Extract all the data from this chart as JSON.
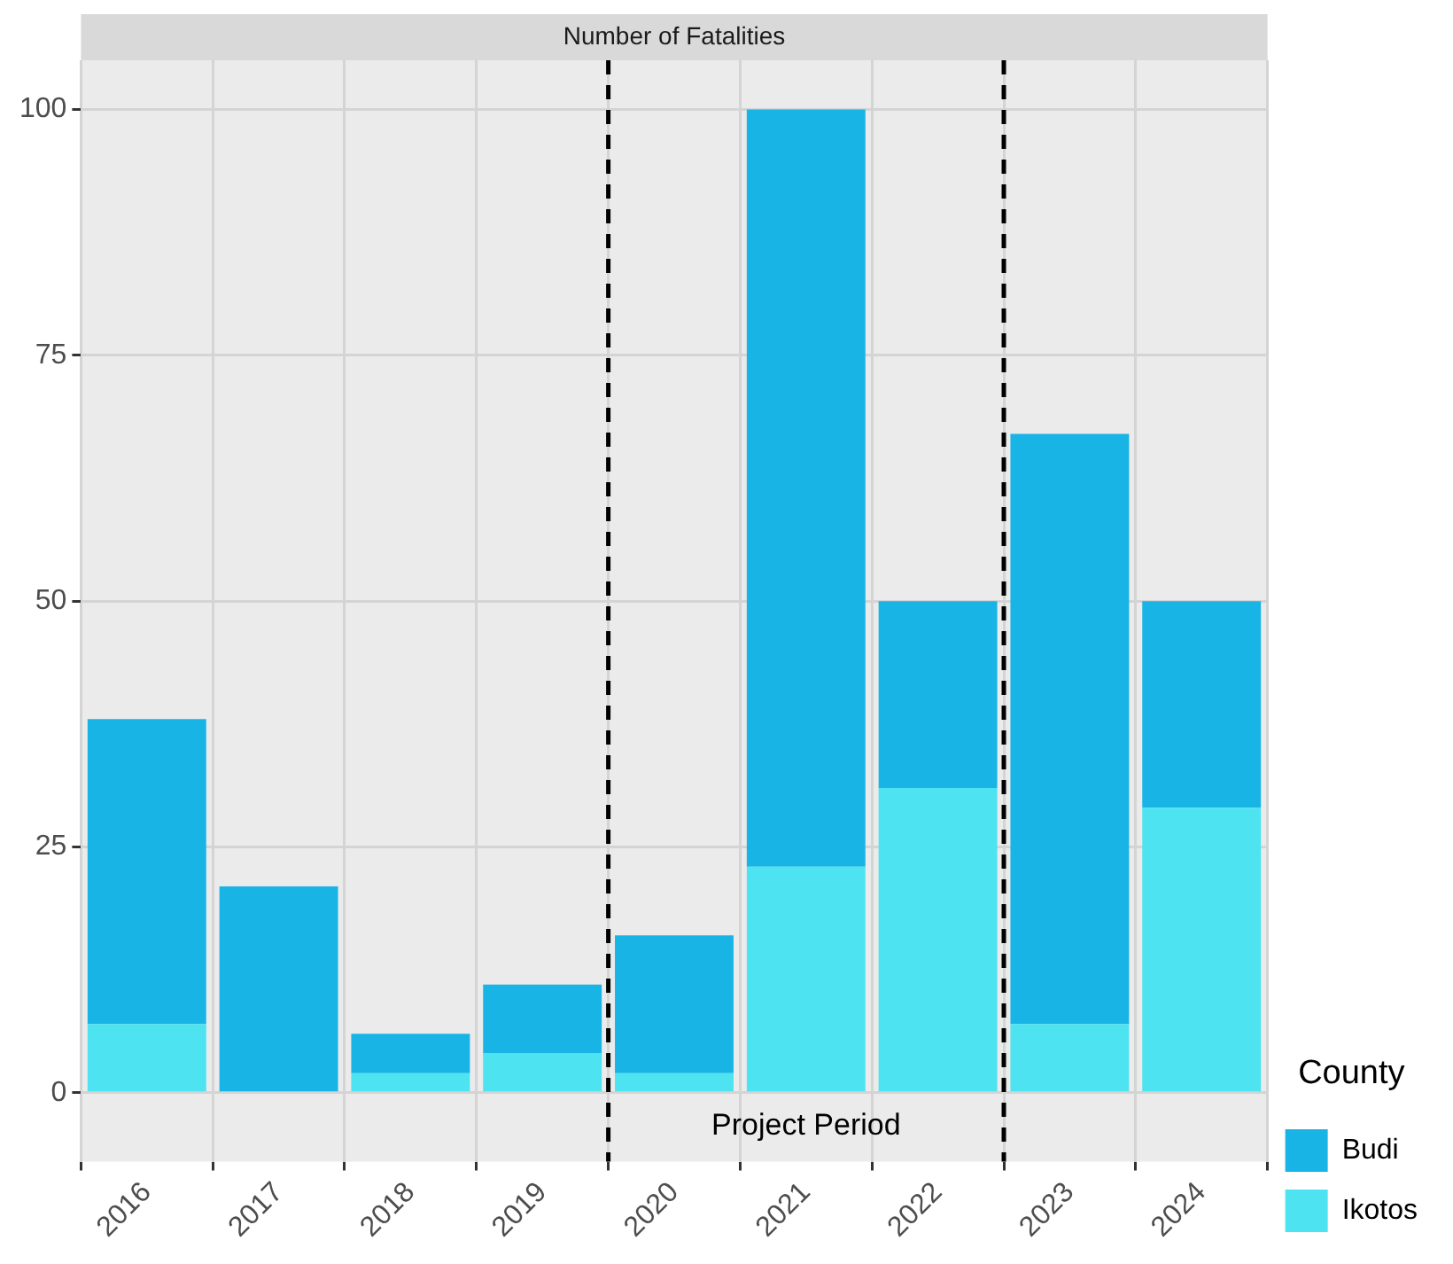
{
  "chart_data": {
    "type": "bar",
    "title": "Number of Fatalities",
    "stacked": true,
    "x": [
      2016,
      2017,
      2018,
      2019,
      2020,
      2021,
      2022,
      2023,
      2024
    ],
    "xlim": [
      2015.5,
      2024.5
    ],
    "xticks": [
      2016,
      2017,
      2018,
      2019,
      2020,
      2021,
      2022,
      2023,
      2024
    ],
    "ylim": [
      -7,
      105
    ],
    "yticks": [
      0,
      25,
      50,
      75,
      100
    ],
    "series": [
      {
        "name": "Ikotos",
        "color": "#4de3f0",
        "values": [
          7,
          0,
          2,
          4,
          2,
          23,
          31,
          7,
          29
        ]
      },
      {
        "name": "Budi",
        "color": "#19b4e6",
        "values": [
          31,
          21,
          4,
          7,
          14,
          77,
          19,
          60,
          21
        ]
      }
    ],
    "ref_lines": [
      {
        "axis": "x",
        "value": 2019.5,
        "line_style": "dashed",
        "color": "#000000"
      },
      {
        "axis": "x",
        "value": 2022.5,
        "line_style": "dashed",
        "color": "#000000"
      }
    ],
    "annotations": [
      "Project Period"
    ],
    "legend_title": "County",
    "legend": "bottom right",
    "grid": true
  }
}
